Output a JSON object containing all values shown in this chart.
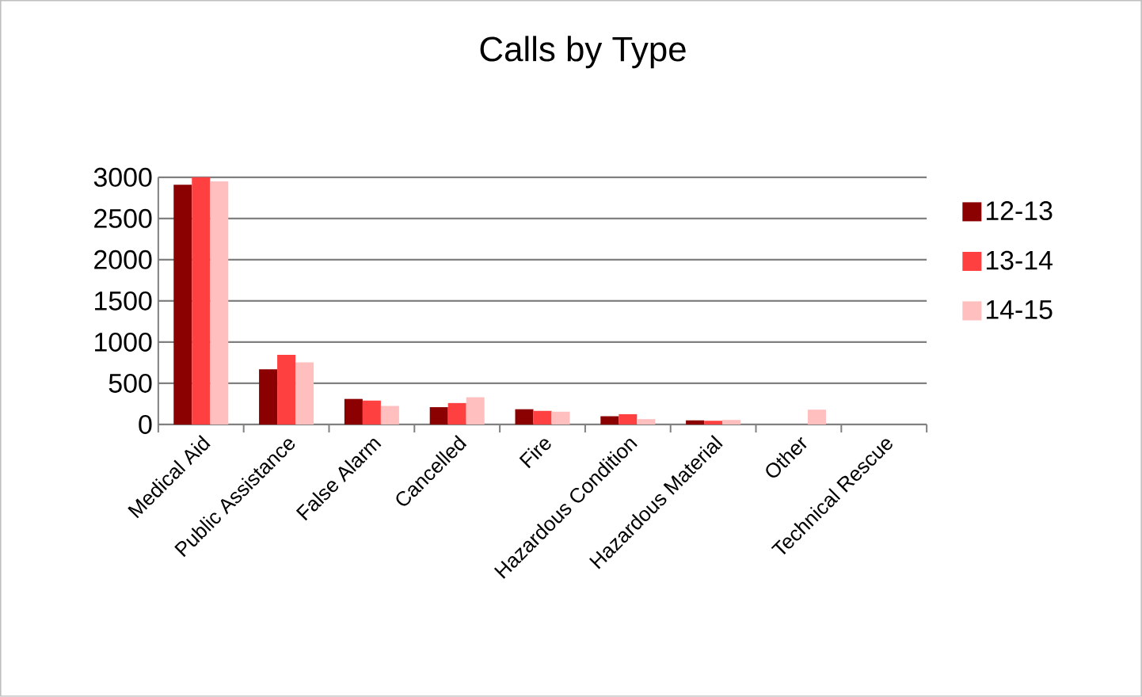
{
  "chart_data": {
    "type": "bar",
    "title": "Calls by Type",
    "categories": [
      "Medical Aid",
      "Public Assistance",
      "False Alarm",
      "Cancelled",
      "Fire",
      "Hazardous Condition",
      "Hazardous Material",
      "Other",
      "Technical Rescue"
    ],
    "series": [
      {
        "name": "12-13",
        "color": "#8b0000",
        "values": [
          2910,
          670,
          310,
          210,
          185,
          100,
          50,
          0,
          0
        ]
      },
      {
        "name": "13-14",
        "color": "#ff4040",
        "values": [
          3000,
          845,
          290,
          260,
          165,
          125,
          45,
          0,
          0
        ]
      },
      {
        "name": "14-15",
        "color": "#ffbfbf",
        "values": [
          2950,
          755,
          225,
          330,
          155,
          65,
          55,
          180,
          0
        ]
      }
    ],
    "ylim": [
      0,
      3000
    ],
    "yticks": [
      0,
      500,
      1000,
      1500,
      2000,
      2500,
      3000
    ],
    "grid": "y",
    "legend": "right"
  }
}
